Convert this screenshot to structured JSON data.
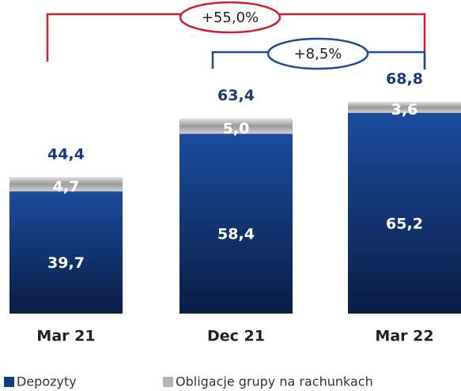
{
  "chart_data": {
    "type": "stacked_bar",
    "categories": [
      "Mar 21",
      "Dec 21",
      "Mar 22"
    ],
    "series": [
      {
        "name": "Depozyty",
        "color": "#123a82",
        "values": [
          39.7,
          58.4,
          65.2
        ],
        "value_labels": [
          "39,7",
          "58,4",
          "65,2"
        ]
      },
      {
        "name": "Obligacje grupy na rachunkach",
        "color": "#b3b3b3",
        "values": [
          4.7,
          5.0,
          3.6
        ],
        "value_labels": [
          "4,7",
          "5,0",
          "3,6"
        ]
      }
    ],
    "totals": [
      44.4,
      63.4,
      68.8
    ],
    "total_labels": [
      "44,4",
      "63,4",
      "68,8"
    ],
    "annotations": [
      {
        "text": "+55,0%",
        "color": "#d0202e"
      },
      {
        "text": "+8,5%",
        "color": "#1c4f99"
      }
    ]
  }
}
